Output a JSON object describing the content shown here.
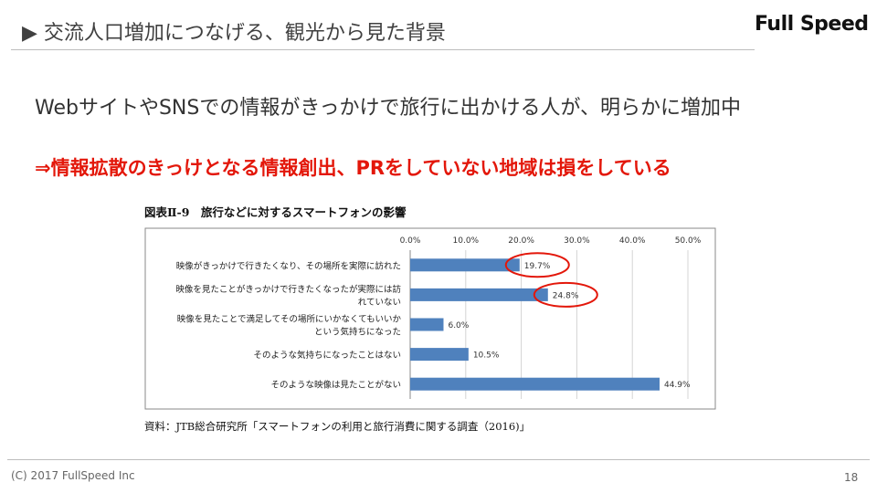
{
  "header": {
    "title": "▶ 交流人口増加につなげる、観光から見た背景",
    "logo": "Full Speed"
  },
  "body": {
    "headline": "WebサイトやSNSでの情報がきっかけで旅行に出かける人が、明らかに増加中",
    "subline": "⇒情報拡散のきっけとなる情報創出、PRをしていない地域は損をしている"
  },
  "figure": {
    "title": "図表Ⅱ-9　旅行などに対するスマートフォンの影響",
    "source": "資料：JTB総合研究所「スマートフォンの利用と旅行消費に関する調査（2016)」"
  },
  "chart_data": {
    "type": "bar",
    "orientation": "horizontal",
    "title": "図表Ⅱ-9　旅行などに対するスマートフォンの影響",
    "categories": [
      [
        "映像がきっかけで行きたくなり、その場所を実際に訪れた"
      ],
      [
        "映像を見たことがきっかけで行きたくなったが実際には訪",
        "れていない"
      ],
      [
        "映像を見たことで満足してその場所にいかなくてもいいか",
        "という気持ちになった"
      ],
      [
        "そのような気持ちになったことはない"
      ],
      [
        "そのような映像は見たことがない"
      ]
    ],
    "values": [
      19.7,
      24.8,
      6.0,
      10.5,
      44.9
    ],
    "value_labels": [
      "19.7%",
      "24.8%",
      "6.0%",
      "10.5%",
      "44.9%"
    ],
    "xlim": [
      0,
      50
    ],
    "ticks": [
      "0.0%",
      "10.0%",
      "20.0%",
      "30.0%",
      "40.0%",
      "50.0%"
    ],
    "tick_values": [
      0,
      10,
      20,
      30,
      40,
      50
    ],
    "highlighted": [
      0,
      1
    ],
    "grid": true,
    "bar_color": "#4f81bd",
    "highlight_color": "#e3170a"
  },
  "footer": {
    "copyright": "(C) 2017 FullSpeed Inc",
    "page": "18"
  }
}
